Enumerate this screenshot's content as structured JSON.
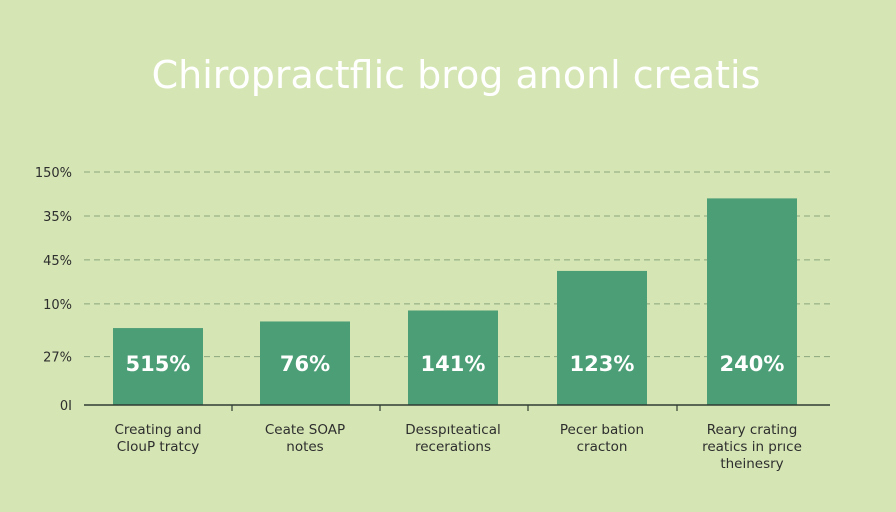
{
  "colors": {
    "background": "#d5e6b4",
    "bar": "#4c9e77",
    "gridline": "#8aa57c",
    "axis": "#2f3b33",
    "title": "#ffffff",
    "data_label": "#ffffff"
  },
  "chart_data": {
    "type": "bar",
    "title": "Chiropractflic brog anonl creatis",
    "xlabel": "",
    "ylabel": "",
    "grid": true,
    "legend": "none",
    "ytick_labels": [
      "0I",
      "27%",
      "10%",
      "45%",
      "35%",
      "150%"
    ],
    "categories": [
      [
        "Creating and",
        "CIouP tratcy"
      ],
      [
        "Ceate SOAP",
        "notes"
      ],
      [
        "Desspıteatical",
        "recerations"
      ],
      [
        "Pecer bation",
        "cracton"
      ],
      [
        "Reary crating",
        "reatics in prıce",
        "theinesry"
      ]
    ],
    "values": [
      1.75,
      1.9,
      2.15,
      3.05,
      4.7
    ],
    "ylim": [
      0,
      5.4
    ],
    "tick_values": [
      0,
      1.1,
      2.3,
      3.3,
      4.3,
      5.3
    ],
    "data_labels": [
      "515%",
      "76%",
      "141%",
      "123%",
      "240%"
    ]
  }
}
